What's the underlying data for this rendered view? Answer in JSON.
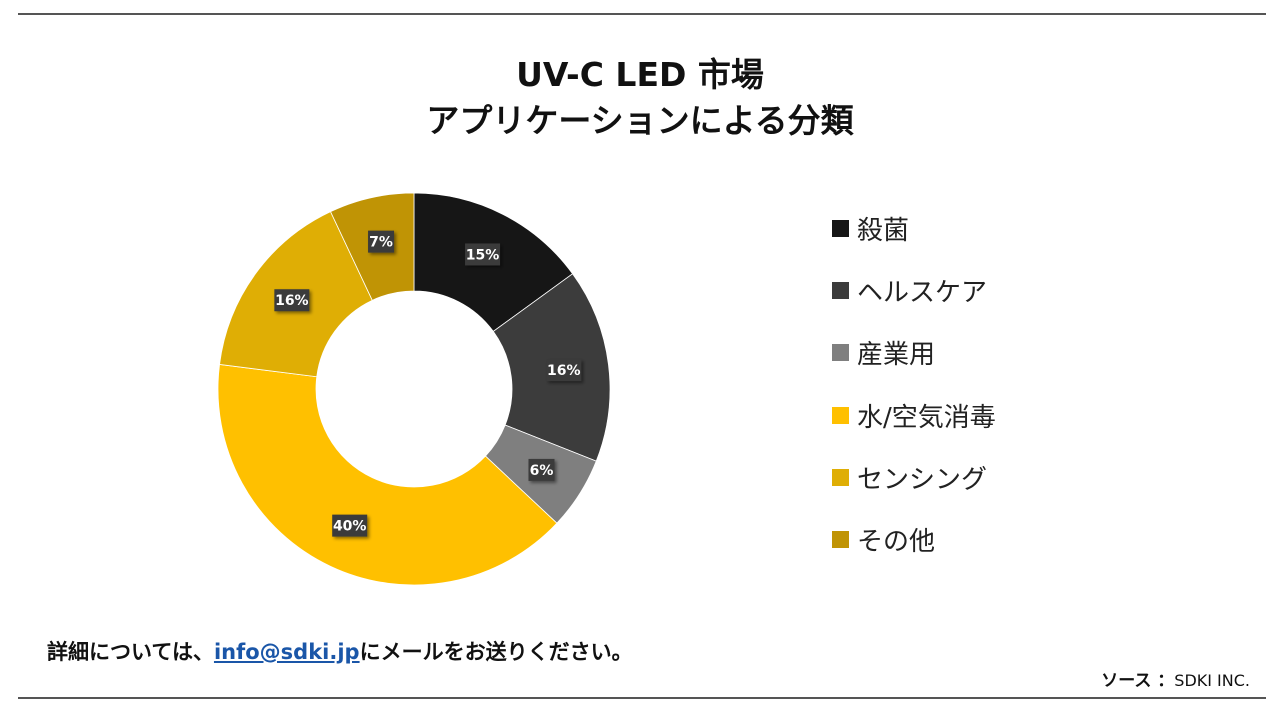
{
  "title": {
    "line1": "UV-C LED 市場",
    "line2": "アプリケーションによる分類"
  },
  "chart_data": {
    "type": "pie",
    "donut": true,
    "slices": [
      {
        "label": "殺菌",
        "value": 15,
        "display": "15%",
        "color": "#161616"
      },
      {
        "label": "ヘルスケア",
        "value": 16,
        "display": "16%",
        "color": "#3c3c3c"
      },
      {
        "label": "産業用",
        "value": 6,
        "display": "6%",
        "color": "#7f7f7f"
      },
      {
        "label": "水/空気消毒",
        "value": 40,
        "display": "40%",
        "color": "#ffc000"
      },
      {
        "label": "センシング",
        "value": 16,
        "display": "16%",
        "color": "#dfae05"
      },
      {
        "label": "その他",
        "value": 7,
        "display": "7%",
        "color": "#c09405"
      }
    ],
    "legend_position": "right"
  },
  "footer": {
    "prefix": "詳細については、",
    "email": "info@sdki.jp",
    "suffix": "にメールをお送りください。"
  },
  "source": {
    "label": "ソース ：",
    "value": "SDKI INC."
  }
}
